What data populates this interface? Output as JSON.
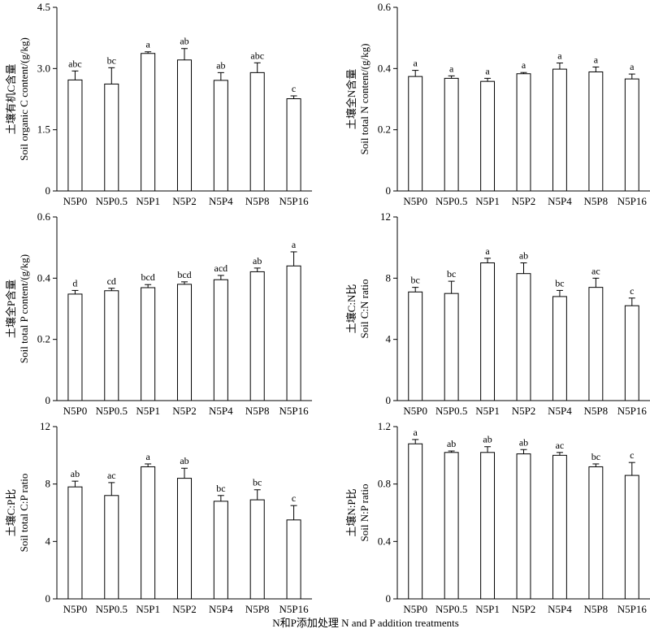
{
  "figure": {
    "xlabel": "N和P添加处理 N and P addition treatments"
  },
  "chart_data": [
    {
      "type": "bar",
      "ylabel_cn": "土壤有机C含量",
      "ylabel_en": "Soil organic C content/(g/kg)",
      "categories": [
        "N5P0",
        "N5P0.5",
        "N5P1",
        "N5P2",
        "N5P4",
        "N5P8",
        "N5P16"
      ],
      "values": [
        2.72,
        2.62,
        3.37,
        3.21,
        2.71,
        2.9,
        2.26
      ],
      "errors": [
        0.22,
        0.4,
        0.04,
        0.28,
        0.19,
        0.24,
        0.07
      ],
      "letters": [
        "abc",
        "bc",
        "a",
        "ab",
        "ab",
        "abc",
        "c"
      ],
      "ylim": [
        0,
        4.5
      ],
      "yticks": [
        "0",
        "1.5",
        "3.0",
        "4.5"
      ]
    },
    {
      "type": "bar",
      "ylabel_cn": "土壤全N含量",
      "ylabel_en": "Soil total N content/(g/kg)",
      "categories": [
        "N5P0",
        "N5P0.5",
        "N5P1",
        "N5P2",
        "N5P4",
        "N5P8",
        "N5P16"
      ],
      "values": [
        0.374,
        0.368,
        0.358,
        0.383,
        0.398,
        0.389,
        0.366
      ],
      "errors": [
        0.02,
        0.008,
        0.01,
        0.004,
        0.02,
        0.016,
        0.016
      ],
      "letters": [
        "a",
        "a",
        "a",
        "a",
        "a",
        "a",
        "a"
      ],
      "ylim": [
        0,
        0.6
      ],
      "yticks": [
        "0",
        "0.2",
        "0.4",
        "0.6"
      ]
    },
    {
      "type": "bar",
      "ylabel_cn": "土壤全P含量",
      "ylabel_en": "Soil total P content/(g/kg)",
      "categories": [
        "N5P0",
        "N5P0.5",
        "N5P1",
        "N5P2",
        "N5P4",
        "N5P8",
        "N5P16"
      ],
      "values": [
        0.348,
        0.359,
        0.369,
        0.38,
        0.395,
        0.421,
        0.44
      ],
      "errors": [
        0.012,
        0.008,
        0.01,
        0.008,
        0.014,
        0.012,
        0.046
      ],
      "letters": [
        "d",
        "cd",
        "bcd",
        "bcd",
        "acd",
        "ab",
        "a"
      ],
      "ylim": [
        0,
        0.6
      ],
      "yticks": [
        "0",
        "0.2",
        "0.4",
        "0.6"
      ]
    },
    {
      "type": "bar",
      "ylabel_cn": "土壤C:N比",
      "ylabel_en": "Soil C:N ratio",
      "categories": [
        "N5P0",
        "N5P0.5",
        "N5P1",
        "N5P2",
        "N5P4",
        "N5P8",
        "N5P16"
      ],
      "values": [
        7.1,
        7.0,
        9.0,
        8.3,
        6.8,
        7.4,
        6.2
      ],
      "errors": [
        0.3,
        0.8,
        0.3,
        0.7,
        0.4,
        0.6,
        0.5
      ],
      "letters": [
        "bc",
        "bc",
        "a",
        "ab",
        "bc",
        "ac",
        "c"
      ],
      "ylim": [
        0,
        12
      ],
      "yticks": [
        "0",
        "4",
        "8",
        "12"
      ]
    },
    {
      "type": "bar",
      "ylabel_cn": "土壤C:P比",
      "ylabel_en": "Soil total C:P ratio",
      "categories": [
        "N5P0",
        "N5P0.5",
        "N5P1",
        "N5P2",
        "N5P4",
        "N5P8",
        "N5P16"
      ],
      "values": [
        7.8,
        7.2,
        9.2,
        8.4,
        6.8,
        6.9,
        5.5
      ],
      "errors": [
        0.4,
        0.9,
        0.2,
        0.7,
        0.4,
        0.7,
        1.0
      ],
      "letters": [
        "ab",
        "ac",
        "a",
        "ab",
        "bc",
        "bc",
        "c"
      ],
      "ylim": [
        0,
        12
      ],
      "yticks": [
        "0",
        "4",
        "8",
        "12"
      ]
    },
    {
      "type": "bar",
      "ylabel_cn": "土壤N:P比",
      "ylabel_en": "Soil N:P ratio",
      "categories": [
        "N5P0",
        "N5P0.5",
        "N5P1",
        "N5P2",
        "N5P4",
        "N5P8",
        "N5P16"
      ],
      "values": [
        1.08,
        1.02,
        1.02,
        1.01,
        1.0,
        0.92,
        0.86
      ],
      "errors": [
        0.03,
        0.01,
        0.04,
        0.03,
        0.02,
        0.02,
        0.09
      ],
      "letters": [
        "a",
        "ab",
        "ab",
        "ab",
        "ac",
        "bc",
        "c"
      ],
      "ylim": [
        0,
        1.2
      ],
      "yticks": [
        "0",
        "0.4",
        "0.8",
        "1.2"
      ]
    }
  ]
}
